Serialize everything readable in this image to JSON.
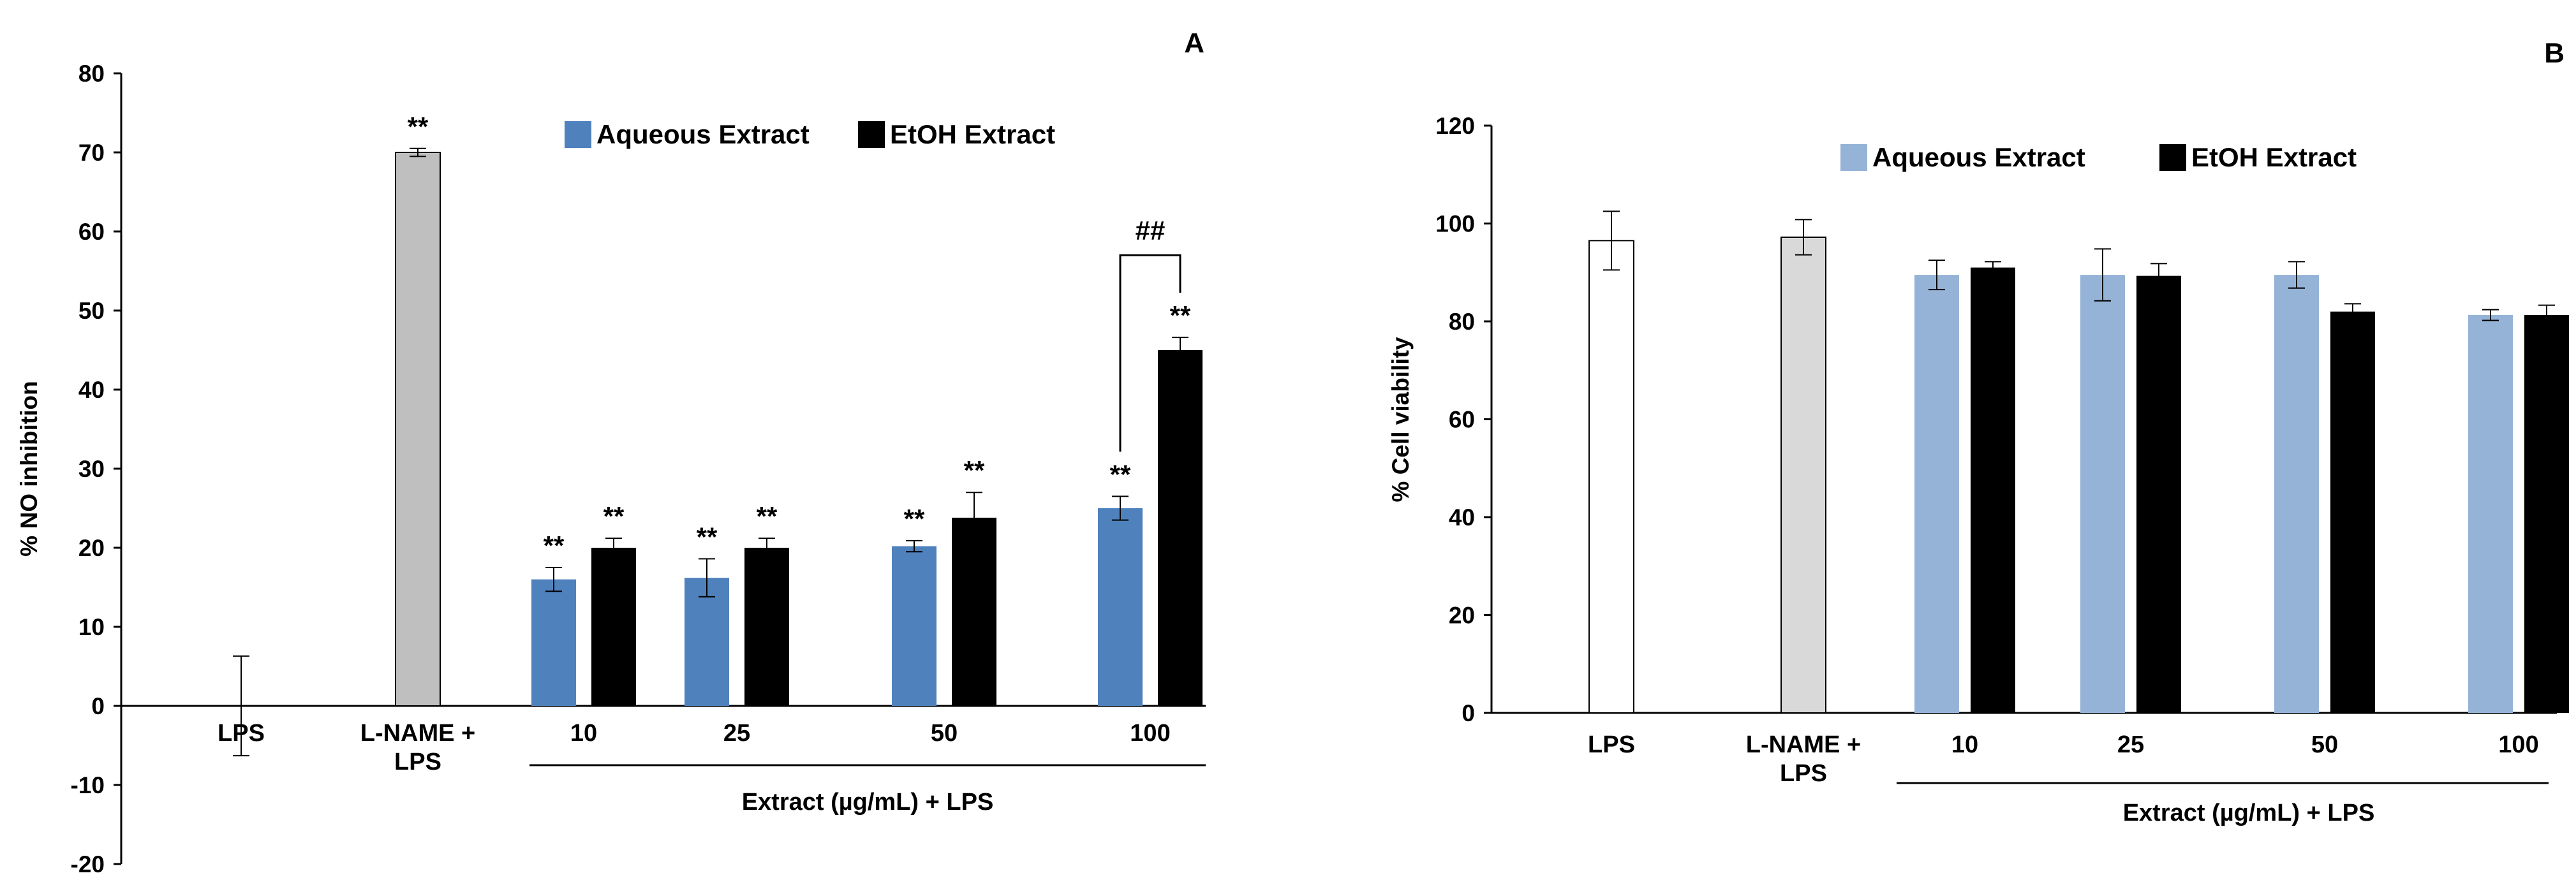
{
  "chart_data": [
    {
      "type": "bar",
      "panel_label": "A",
      "ylabel": "% NO inhibition",
      "xlabel": "Extract (µg/mL) + LPS",
      "ylim": [
        -20,
        80
      ],
      "yticks": [
        -20,
        -10,
        0,
        10,
        20,
        30,
        40,
        50,
        60,
        70,
        80
      ],
      "categories": [
        {
          "label": [
            "LPS"
          ]
        },
        {
          "label": [
            "L-NAME +",
            "LPS"
          ]
        },
        {
          "label": [
            "10"
          ]
        },
        {
          "label": [
            "25"
          ]
        },
        {
          "label": [
            "50"
          ]
        },
        {
          "label": [
            "100"
          ]
        }
      ],
      "legend": [
        {
          "name": "Aqueous Extract",
          "color": "#4F81BD"
        },
        {
          "name": "EtOH Extract",
          "color": "#000000"
        }
      ],
      "bars": [
        {
          "cat": 0,
          "slot": "single",
          "value": 0,
          "err": 6.3,
          "color": "#FFFFFF",
          "sig": ""
        },
        {
          "cat": 1,
          "slot": "single",
          "value": 70,
          "err": 0.5,
          "color": "#BFBFBF",
          "sig": "**"
        },
        {
          "cat": 2,
          "slot": "left",
          "value": 16,
          "err": 1.5,
          "color": "#4F81BD",
          "sig": "**"
        },
        {
          "cat": 2,
          "slot": "right",
          "value": 20,
          "err": 1.2,
          "color": "#000000",
          "sig": "**"
        },
        {
          "cat": 3,
          "slot": "left",
          "value": 16.2,
          "err": 2.4,
          "color": "#4F81BD",
          "sig": "**"
        },
        {
          "cat": 3,
          "slot": "right",
          "value": 20,
          "err": 1.2,
          "color": "#000000",
          "sig": "**"
        },
        {
          "cat": 4,
          "slot": "left",
          "value": 20.2,
          "err": 0.7,
          "color": "#4F81BD",
          "sig": "**"
        },
        {
          "cat": 4,
          "slot": "right",
          "value": 23.8,
          "err": 3.2,
          "color": "#000000",
          "sig": "**"
        },
        {
          "cat": 5,
          "slot": "left",
          "value": 25,
          "err": 1.5,
          "color": "#4F81BD",
          "sig": "**"
        },
        {
          "cat": 5,
          "slot": "right",
          "value": 45,
          "err": 1.6,
          "color": "#000000",
          "sig": "**"
        }
      ],
      "bracket": {
        "cat": 5,
        "label": "##",
        "level": 57
      }
    },
    {
      "type": "bar",
      "panel_label": "B",
      "ylabel": "% Cell viability",
      "xlabel": "Extract (µg/mL) + LPS",
      "ylim": [
        0,
        120
      ],
      "yticks": [
        0,
        20,
        40,
        60,
        80,
        100,
        120
      ],
      "categories": [
        {
          "label": [
            "LPS"
          ]
        },
        {
          "label": [
            "L-NAME +",
            "LPS"
          ]
        },
        {
          "label": [
            "10"
          ]
        },
        {
          "label": [
            "25"
          ]
        },
        {
          "label": [
            "50"
          ]
        },
        {
          "label": [
            "100"
          ]
        }
      ],
      "legend": [
        {
          "name": "Aqueous Extract",
          "color": "#95B3D7"
        },
        {
          "name": "EtOH Extract",
          "color": "#000000"
        }
      ],
      "bars": [
        {
          "cat": 0,
          "slot": "single",
          "value": 96.5,
          "err": 6,
          "color": "#FFFFFF",
          "sig": ""
        },
        {
          "cat": 1,
          "slot": "single",
          "value": 97.2,
          "err": 3.6,
          "color": "#D9D9D9",
          "sig": ""
        },
        {
          "cat": 2,
          "slot": "left",
          "value": 89.5,
          "err": 3,
          "color": "#95B3D7",
          "sig": ""
        },
        {
          "cat": 2,
          "slot": "right",
          "value": 91,
          "err": 1.2,
          "color": "#000000",
          "sig": ""
        },
        {
          "cat": 3,
          "slot": "left",
          "value": 89.5,
          "err": 5.3,
          "color": "#95B3D7",
          "sig": ""
        },
        {
          "cat": 3,
          "slot": "right",
          "value": 89.3,
          "err": 2.5,
          "color": "#000000",
          "sig": ""
        },
        {
          "cat": 4,
          "slot": "left",
          "value": 89.5,
          "err": 2.7,
          "color": "#95B3D7",
          "sig": ""
        },
        {
          "cat": 4,
          "slot": "right",
          "value": 82,
          "err": 1.6,
          "color": "#000000",
          "sig": ""
        },
        {
          "cat": 5,
          "slot": "left",
          "value": 81.3,
          "err": 1.1,
          "color": "#95B3D7",
          "sig": ""
        },
        {
          "cat": 5,
          "slot": "right",
          "value": 81.3,
          "err": 2,
          "color": "#000000",
          "sig": ""
        }
      ]
    }
  ]
}
